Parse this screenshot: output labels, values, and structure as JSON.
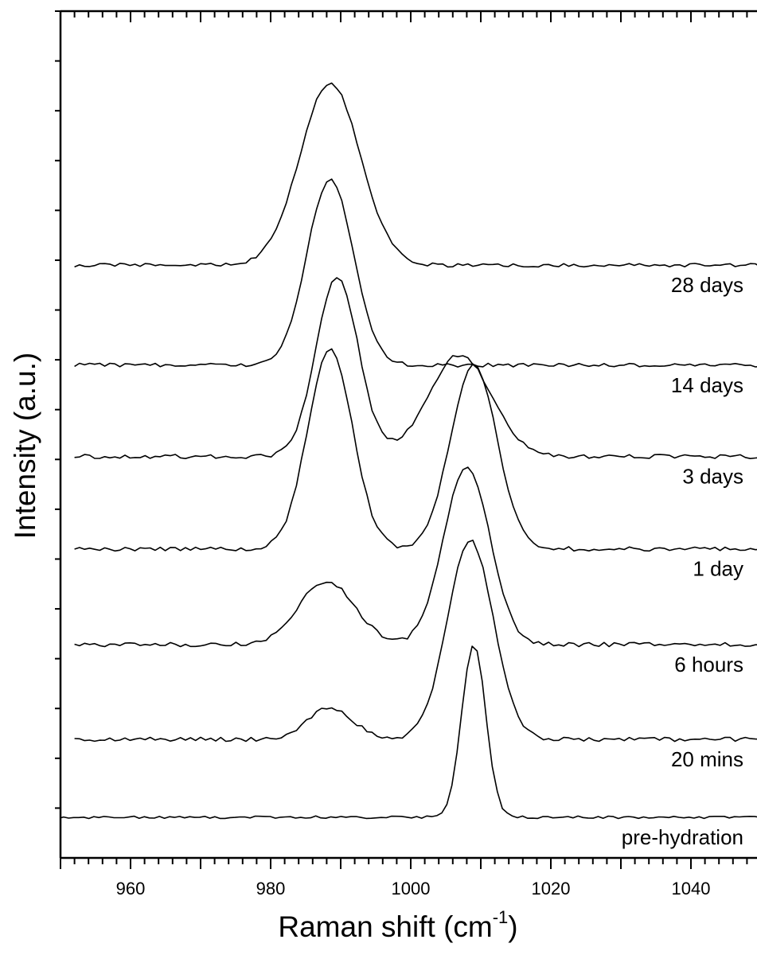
{
  "chart_data": {
    "type": "line",
    "title": "",
    "xlabel": "Raman shift (cm",
    "xlabel_superscript": "-1",
    "xlabel_suffix": ")",
    "ylabel": "Intensity (a.u.)",
    "xlim": [
      950,
      1050
    ],
    "ylim": [
      0,
      1
    ],
    "x_ticks": [
      960,
      980,
      1000,
      1020,
      1040
    ],
    "y_tick_labels": false,
    "grid": false,
    "legend": "none",
    "line_color": "#000000",
    "series": [
      {
        "name": "pre-hydration",
        "baseline": 0.048,
        "noise": 0.0015,
        "x_start": 949,
        "peaks": [
          {
            "center": 1009.0,
            "amp": 0.205,
            "width": 1.7
          }
        ]
      },
      {
        "name": "20 mins",
        "baseline": 0.14,
        "noise": 0.0025,
        "x_start": 952,
        "peaks": [
          {
            "center": 988.5,
            "amp": 0.038,
            "width": 3.2
          },
          {
            "center": 1008.5,
            "amp": 0.235,
            "width": 3.3
          }
        ]
      },
      {
        "name": "6 hours",
        "baseline": 0.252,
        "noise": 0.0025,
        "x_start": 952,
        "peaks": [
          {
            "center": 988.0,
            "amp": 0.075,
            "width": 4.0
          },
          {
            "center": 1008.0,
            "amp": 0.21,
            "width": 3.3
          }
        ]
      },
      {
        "name": "1 day",
        "baseline": 0.365,
        "noise": 0.0025,
        "x_start": 952,
        "peaks": [
          {
            "center": 988.5,
            "amp": 0.237,
            "width": 3.2
          },
          {
            "center": 1009.0,
            "amp": 0.217,
            "width": 3.3
          }
        ]
      },
      {
        "name": "3 days",
        "baseline": 0.474,
        "noise": 0.0025,
        "x_start": 952,
        "peaks": [
          {
            "center": 989.5,
            "amp": 0.213,
            "width": 3.0
          },
          {
            "center": 1007.0,
            "amp": 0.12,
            "width": 4.5
          }
        ]
      },
      {
        "name": "14 days",
        "baseline": 0.582,
        "noise": 0.0022,
        "x_start": 952,
        "peaks": [
          {
            "center": 988.5,
            "amp": 0.22,
            "width": 3.3
          }
        ]
      },
      {
        "name": "28 days",
        "baseline": 0.7,
        "noise": 0.0022,
        "x_start": 952,
        "peaks": [
          {
            "center": 988.5,
            "amp": 0.215,
            "width": 4.3
          }
        ]
      }
    ]
  }
}
